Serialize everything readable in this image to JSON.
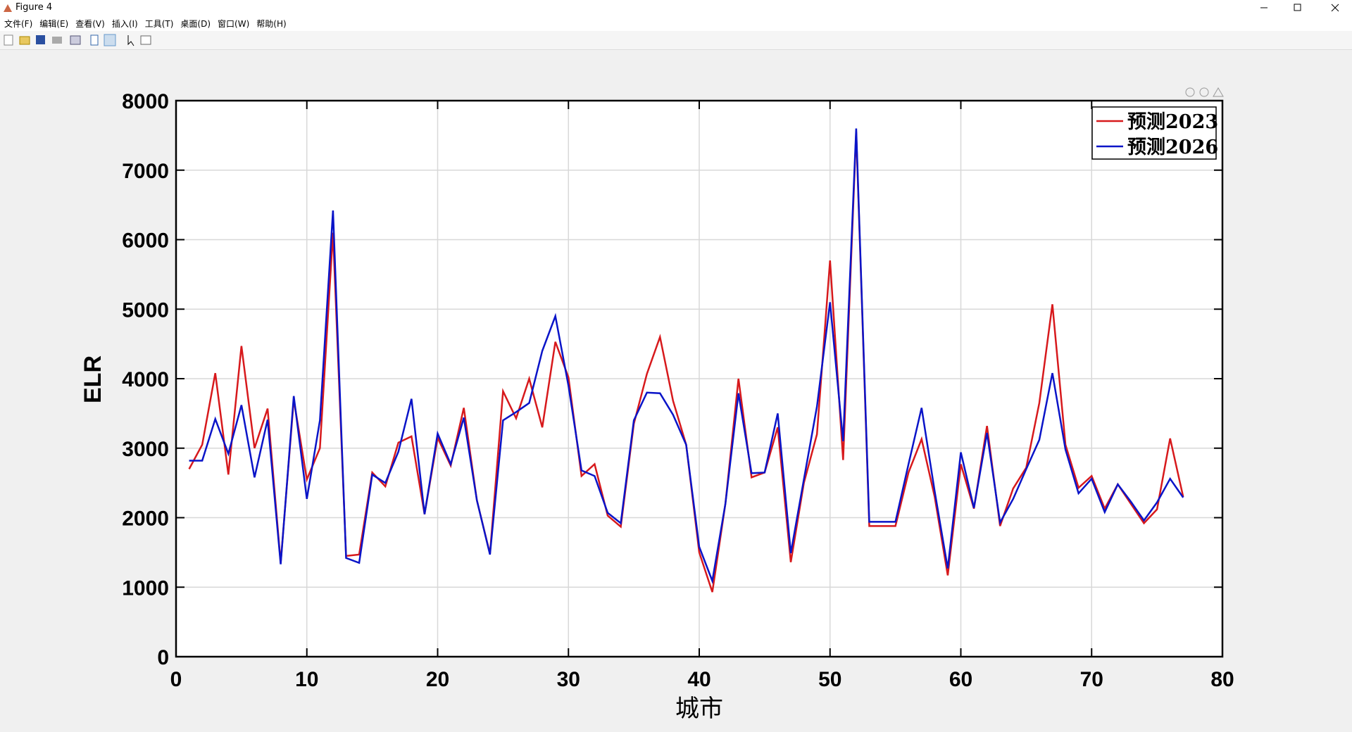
{
  "window": {
    "title": "Figure 4",
    "menu": [
      "文件(F)",
      "编辑(E)",
      "查看(V)",
      "插入(I)",
      "工具(T)",
      "桌面(D)",
      "窗口(W)",
      "帮助(H)"
    ]
  },
  "chart_data": {
    "type": "line",
    "xlabel": "城市",
    "ylabel": "ELR",
    "x": [
      1,
      2,
      3,
      4,
      5,
      6,
      7,
      8,
      9,
      10,
      11,
      12,
      13,
      14,
      15,
      16,
      17,
      18,
      19,
      20,
      21,
      22,
      23,
      24,
      25,
      26,
      27,
      28,
      29,
      30,
      31,
      32,
      33,
      34,
      35,
      36,
      37,
      38,
      39,
      40,
      41,
      42,
      43,
      44,
      45,
      46,
      47,
      48,
      49,
      50,
      51,
      52,
      53,
      54,
      55,
      56,
      57,
      58,
      59,
      60,
      61,
      62,
      63,
      64,
      65,
      66,
      67,
      68,
      69,
      70,
      71,
      72,
      73,
      74,
      75,
      76,
      77
    ],
    "series": [
      {
        "name": "预测2023",
        "color": "#d7191c",
        "values": [
          2700,
          3050,
          4080,
          2620,
          4470,
          3000,
          3570,
          1350,
          3700,
          2550,
          3000,
          6100,
          1450,
          1470,
          2650,
          2450,
          3080,
          3170,
          2050,
          3150,
          2750,
          3580,
          2250,
          1480,
          3820,
          3430,
          4000,
          3300,
          4530,
          4020,
          2600,
          2770,
          2030,
          1870,
          3350,
          4070,
          4600,
          3680,
          3050,
          1500,
          930,
          2200,
          4000,
          2580,
          2650,
          3300,
          1360,
          2500,
          3200,
          5700,
          2830,
          7550,
          1880,
          1880,
          1880,
          2650,
          3130,
          2300,
          1170,
          2770,
          2130,
          3320,
          1880,
          2420,
          2720,
          3650,
          5070,
          3050,
          2430,
          2600,
          2130,
          2480,
          2200,
          1920,
          2120,
          3140,
          2300
        ]
      },
      {
        "name": "预测2026",
        "color": "#0a14c8",
        "values": [
          2820,
          2820,
          3420,
          2920,
          3620,
          2580,
          3410,
          1330,
          3750,
          2270,
          3400,
          6420,
          1420,
          1350,
          2620,
          2500,
          2950,
          3710,
          2050,
          3210,
          2770,
          3440,
          2250,
          1470,
          3400,
          3520,
          3650,
          4400,
          4900,
          3900,
          2680,
          2600,
          2070,
          1920,
          3400,
          3800,
          3790,
          3480,
          3050,
          1580,
          1090,
          2200,
          3790,
          2640,
          2650,
          3500,
          1490,
          2550,
          3600,
          5100,
          3100,
          7600,
          1940,
          1940,
          1940,
          2770,
          3580,
          2380,
          1270,
          2940,
          2140,
          3220,
          1930,
          2270,
          2700,
          3120,
          4080,
          2980,
          2350,
          2560,
          2080,
          2480,
          2230,
          1960,
          2220,
          2560,
          2290
        ]
      }
    ],
    "xlim": [
      0,
      80
    ],
    "xticks": [
      0,
      10,
      20,
      30,
      40,
      50,
      60,
      70,
      80
    ],
    "ylim": [
      0,
      8000
    ],
    "yticks": [
      0,
      1000,
      2000,
      3000,
      4000,
      5000,
      6000,
      7000,
      8000
    ],
    "grid": true,
    "legend": "upper right"
  }
}
